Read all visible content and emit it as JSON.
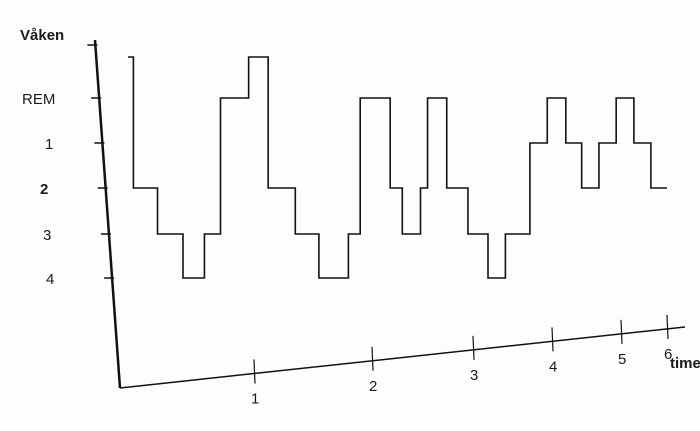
{
  "chart_data": {
    "type": "line",
    "step": true,
    "title": "",
    "xlabel": "time",
    "ylabel": "",
    "x_ticks": [
      "1",
      "2",
      "3",
      "4",
      "5",
      "6"
    ],
    "xlim": [
      0,
      6
    ],
    "y_categories": [
      "Våken",
      "REM",
      "1",
      "2",
      "3",
      "4"
    ],
    "grid": false,
    "line_color": "#111111",
    "series": [
      {
        "points": [
          {
            "x": 0.06,
            "stage": "Våken"
          },
          {
            "x": 0.1,
            "stage": "2"
          },
          {
            "x": 0.28,
            "stage": "3"
          },
          {
            "x": 0.47,
            "stage": "4"
          },
          {
            "x": 0.63,
            "stage": "3"
          },
          {
            "x": 0.75,
            "stage": "REM"
          },
          {
            "x": 0.96,
            "stage": "Våken"
          },
          {
            "x": 1.12,
            "stage": "2"
          },
          {
            "x": 1.35,
            "stage": "3"
          },
          {
            "x": 1.55,
            "stage": "4"
          },
          {
            "x": 1.8,
            "stage": "3"
          },
          {
            "x": 1.9,
            "stage": "REM"
          },
          {
            "x": 2.18,
            "stage": "2"
          },
          {
            "x": 2.3,
            "stage": "3"
          },
          {
            "x": 2.48,
            "stage": "2"
          },
          {
            "x": 2.55,
            "stage": "REM"
          },
          {
            "x": 2.74,
            "stage": "2"
          },
          {
            "x": 2.95,
            "stage": "3"
          },
          {
            "x": 3.19,
            "stage": "4"
          },
          {
            "x": 3.41,
            "stage": "3"
          },
          {
            "x": 3.72,
            "stage": "1"
          },
          {
            "x": 3.94,
            "stage": "REM"
          },
          {
            "x": 4.2,
            "stage": "1"
          },
          {
            "x": 4.43,
            "stage": "2"
          },
          {
            "x": 4.68,
            "stage": "1"
          },
          {
            "x": 4.93,
            "stage": "REM"
          },
          {
            "x": 5.28,
            "stage": "1"
          },
          {
            "x": 5.65,
            "stage": "2"
          },
          {
            "x": 6.0,
            "stage": "2"
          }
        ]
      }
    ]
  }
}
